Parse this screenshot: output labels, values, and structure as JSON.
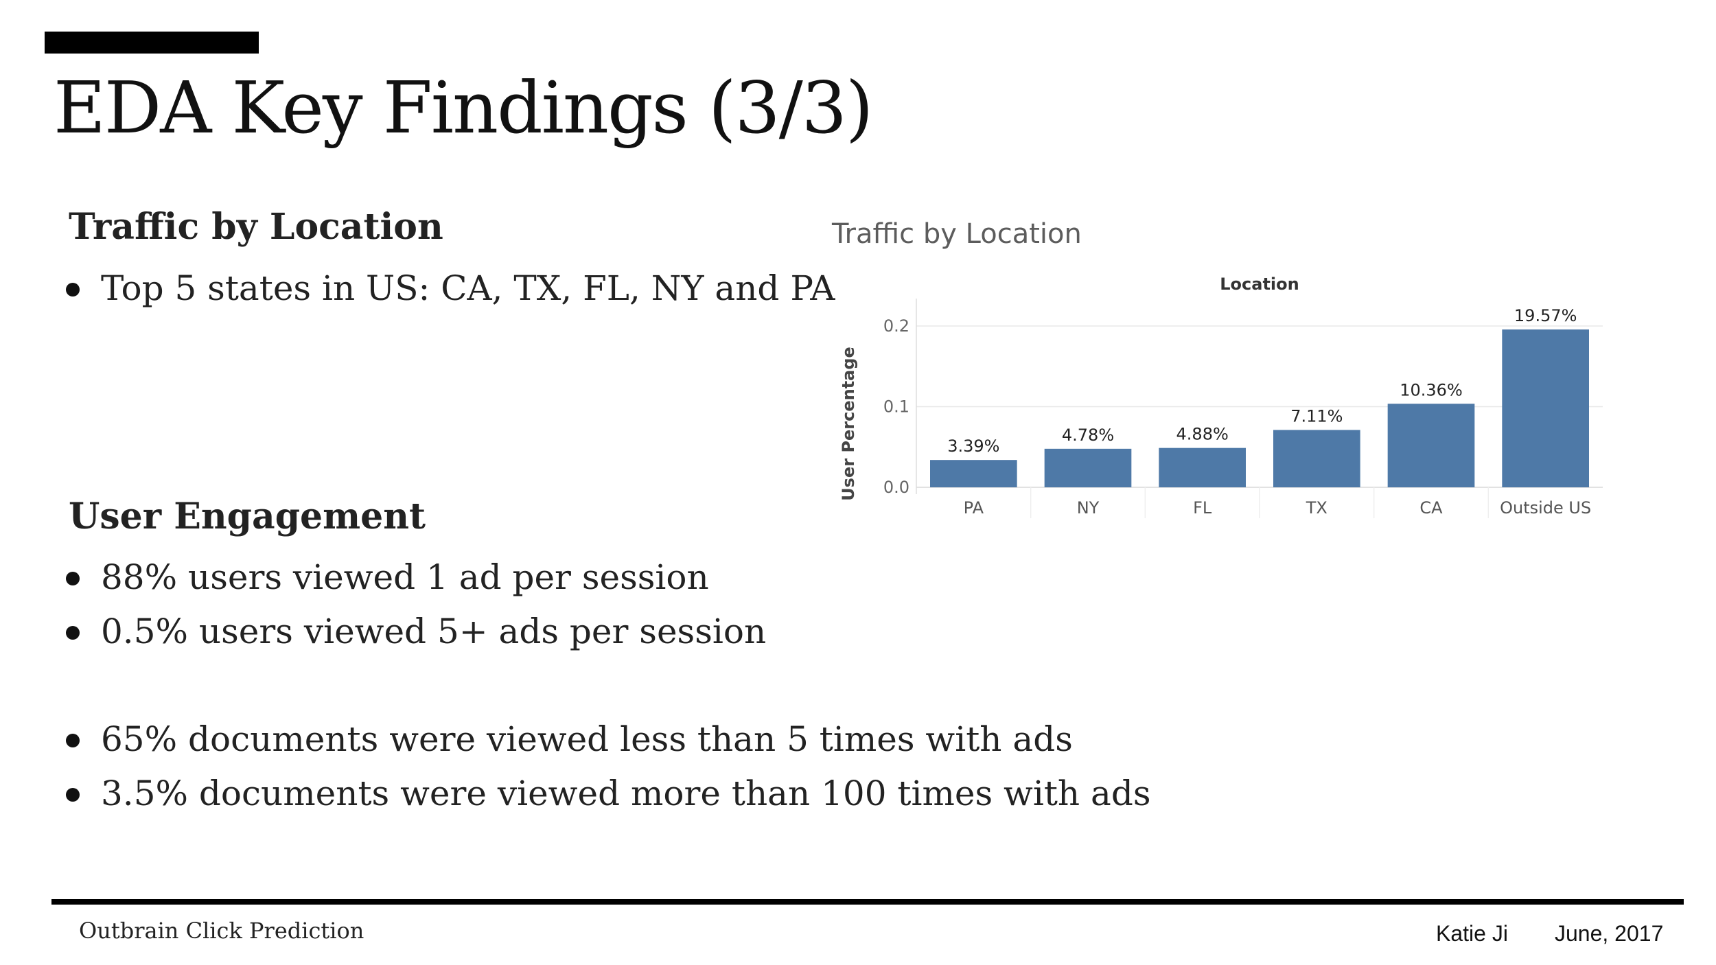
{
  "slide": {
    "title": "EDA Key Findings (3/3)"
  },
  "traffic_section": {
    "heading": "Traffic by Location",
    "bullets": [
      "Top 5 states in US: CA, TX, FL, NY and PA"
    ]
  },
  "engagement_section": {
    "heading": "User Engagement",
    "bullets": [
      "88% users viewed 1 ad per session",
      "0.5% users viewed 5+ ads per session",
      "65% documents were viewed less than 5 times with ads",
      "3.5% documents were viewed more than 100 times with ads"
    ]
  },
  "footer": {
    "project": "Outbrain Click Prediction",
    "author": "Katie Ji",
    "date": "June, 2017"
  },
  "chart_data": {
    "type": "bar",
    "title": "Traffic by Location",
    "column_header": "Location",
    "ylabel": "User Percentage",
    "categories": [
      "PA",
      "NY",
      "FL",
      "TX",
      "CA",
      "Outside US"
    ],
    "values": [
      0.0339,
      0.0478,
      0.0488,
      0.0711,
      0.1036,
      0.1957
    ],
    "data_labels": [
      "3.39%",
      "4.78%",
      "4.88%",
      "7.11%",
      "10.36%",
      "19.57%"
    ],
    "y_ticks": [
      "0.2",
      "0.1",
      "0.0"
    ],
    "ylim": [
      0,
      0.2
    ],
    "bar_color": "#4e79a7",
    "grid": true
  },
  "colors": {
    "accent_bar": "#000000",
    "text": "#222222",
    "chart_title": "#5c5c5c"
  }
}
